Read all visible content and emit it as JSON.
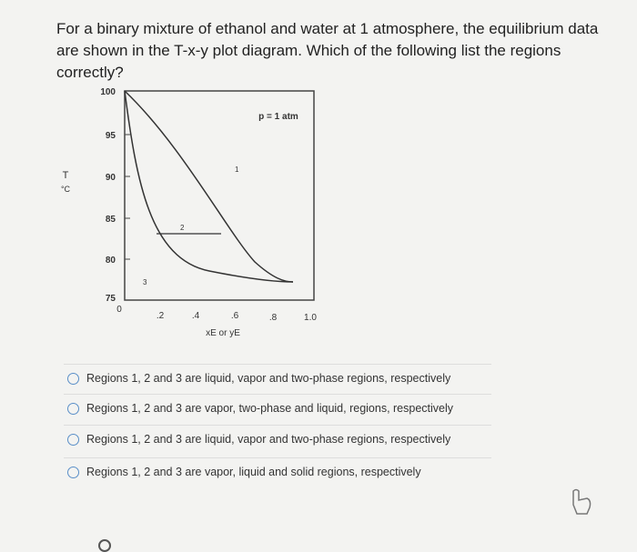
{
  "question": "For a binary mixture of ethanol and water at 1 atmosphere, the equilibrium data are shown in the T-x-y plot diagram. Which of the following list the regions correctly?",
  "figure": {
    "y_axis_label": "T",
    "y_axis_unit": "°C",
    "y_ticks": [
      "100",
      "95",
      "90",
      "85",
      "80",
      "75"
    ],
    "x_ticks": [
      "0",
      ".2",
      ".4",
      ".6",
      ".8",
      "1.0"
    ],
    "x_axis_label": "xE or yE",
    "pressure_label": "p = 1 atm",
    "regions": [
      "1",
      "2",
      "3"
    ]
  },
  "options": [
    "Regions 1, 2 and 3 are liquid, vapor and two-phase regions, respectively",
    "Regions 1, 2 and 3 are vapor, two-phase and liquid, regions, respectively",
    "Regions 1, 2 and 3 are liquid, vapor and two-phase regions, respectively",
    "Regions 1, 2 and 3 are vapor, liquid and solid regions, respectively"
  ]
}
